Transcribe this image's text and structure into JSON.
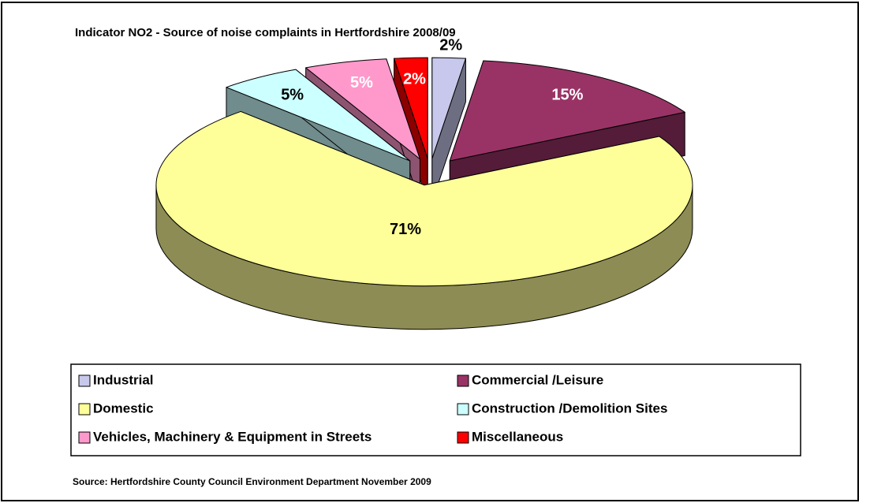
{
  "chart_data": {
    "type": "pie3d",
    "title": "Indicator NO2 - Source of noise complaints in Hertfordshire 2008/09",
    "source": "Source: Hertfordshire County Council Environment Department November 2009",
    "categories": [
      "Industrial",
      "Commercial /Leisure",
      "Domestic",
      "Construction /Demolition Sites",
      "Vehicles, Machinery & Equipment in Streets",
      "Miscellaneous"
    ],
    "values": [
      2,
      15,
      71,
      5,
      5,
      2
    ],
    "value_labels": [
      "2%",
      "15%",
      "71%",
      "5%",
      "5%",
      "2%"
    ],
    "colors": [
      "#c8c8ec",
      "#993366",
      "#ffff99",
      "#ccffff",
      "#ff99cc",
      "#ff0000"
    ],
    "legend": "bottom"
  }
}
